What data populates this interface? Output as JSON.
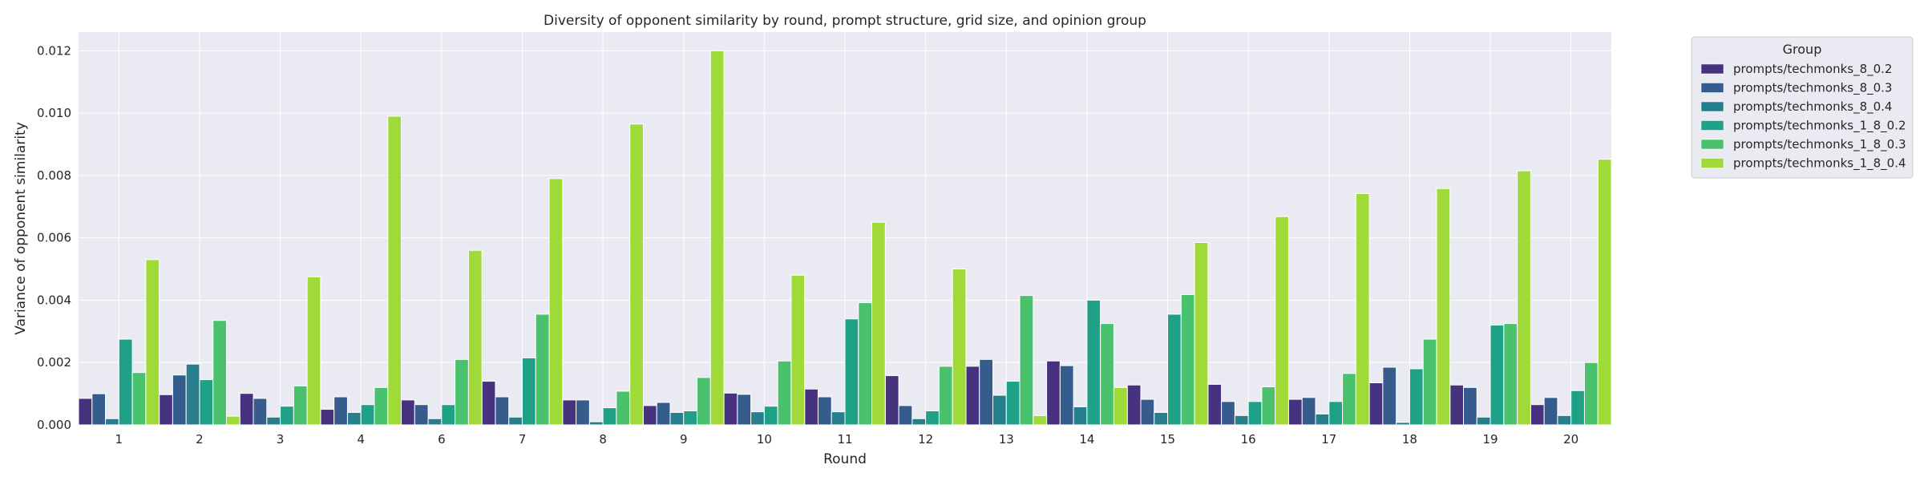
{
  "chart_data": {
    "type": "bar",
    "title": "Diversity of opponent similarity by round, prompt structure, grid size, and opinion group",
    "xlabel": "Round",
    "ylabel": "Variance of opponent similarity",
    "ylim": [
      0,
      0.0126
    ],
    "yticks": [
      "0.000",
      "0.002",
      "0.004",
      "0.006",
      "0.008",
      "0.010",
      "0.012"
    ],
    "grid": true,
    "legend_placement": "outside-top-right",
    "legend_title": "Group",
    "categories": [
      "1",
      "2",
      "3",
      "4",
      "6",
      "7",
      "8",
      "9",
      "10",
      "11",
      "12",
      "13",
      "14",
      "15",
      "16",
      "17",
      "18",
      "19",
      "20"
    ],
    "colors": [
      "#46327e",
      "#365c8d",
      "#277f8e",
      "#1fa187",
      "#4ac16d",
      "#a0da39"
    ],
    "series": [
      {
        "name": "prompts/techmonks_8_0.2",
        "values": [
          0.00085,
          0.00097,
          0.00101,
          0.0005,
          0.0008,
          0.0014,
          0.0008,
          0.00062,
          0.00102,
          0.00115,
          0.00158,
          0.00188,
          0.00205,
          0.00128,
          0.0013,
          0.00082,
          0.00135,
          0.00128,
          0.00065
        ]
      },
      {
        "name": "prompts/techmonks_8_0.3",
        "values": [
          0.001,
          0.0016,
          0.00085,
          0.0009,
          0.00065,
          0.0009,
          0.0008,
          0.00072,
          0.00098,
          0.0009,
          0.00062,
          0.0021,
          0.0019,
          0.00082,
          0.00075,
          0.00088,
          0.00185,
          0.0012,
          0.00088
        ]
      },
      {
        "name": "prompts/techmonks_8_0.4",
        "values": [
          0.0002,
          0.00195,
          0.00025,
          0.0004,
          0.0002,
          0.00025,
          0.0001,
          0.0004,
          0.00042,
          0.00042,
          0.0002,
          0.00095,
          0.00058,
          0.0004,
          0.0003,
          0.00035,
          8e-05,
          0.00025,
          0.0003
        ]
      },
      {
        "name": "prompts/techmonks_1_8_0.2",
        "values": [
          0.00275,
          0.00145,
          0.0006,
          0.00065,
          0.00065,
          0.00215,
          0.00055,
          0.00045,
          0.0006,
          0.0034,
          0.00045,
          0.0014,
          0.004,
          0.00355,
          0.00075,
          0.00075,
          0.0018,
          0.0032,
          0.0011
        ]
      },
      {
        "name": "prompts/techmonks_1_8_0.3",
        "values": [
          0.00168,
          0.00335,
          0.00125,
          0.0012,
          0.0021,
          0.00355,
          0.00108,
          0.00152,
          0.00205,
          0.00392,
          0.00188,
          0.00415,
          0.00325,
          0.00418,
          0.00122,
          0.00165,
          0.00275,
          0.00325,
          0.002
        ]
      },
      {
        "name": "prompts/techmonks_1_8_0.4",
        "values": [
          0.0053,
          0.00028,
          0.00475,
          0.0099,
          0.0056,
          0.0079,
          0.00965,
          0.012,
          0.0048,
          0.0065,
          0.005,
          0.0003,
          0.0012,
          0.00585,
          0.00668,
          0.00742,
          0.00758,
          0.00815,
          0.00852
        ]
      }
    ]
  }
}
